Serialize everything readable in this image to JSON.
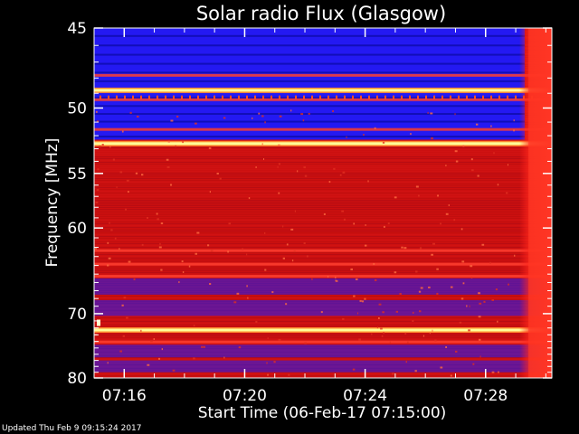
{
  "chart_data": {
    "type": "heatmap",
    "title": "Solar radio Flux (Glasgow)",
    "xlabel": "Start Time (06-Feb-17 07:15:00)",
    "ylabel": "Frequency [MHz]",
    "x_ticks": [
      "07:16",
      "07:20",
      "07:24",
      "07:28"
    ],
    "x_tick_minutes": [
      1,
      5,
      9,
      13
    ],
    "x_range_minutes": [
      0,
      15.2
    ],
    "y_ticks": [
      45,
      50,
      55,
      60,
      70,
      80
    ],
    "y_range_mhz": [
      45,
      80
    ],
    "y_scale": "reciprocal",
    "colors": {
      "background": "#000000",
      "low": "#1a1aff",
      "mid": "#cc1010",
      "high": "#ffff99",
      "axis": "#ffffff"
    },
    "bright_lines_mhz": [
      48.8,
      52.6,
      72.3
    ],
    "rfi_lines_mhz": [
      47.8,
      49.4,
      51.5,
      62.3,
      63.8,
      65.2,
      74.0
    ],
    "blue_bands_mhz": [
      [
        45,
        52.3
      ],
      [
        65.5,
        67.5
      ],
      [
        68.2,
        70.3
      ],
      [
        74.5,
        76.5
      ],
      [
        77.0,
        79.0
      ]
    ],
    "burst_start_minute": 14.3
  },
  "footer": "Updated Thu Feb  9 09:15:24 2017"
}
